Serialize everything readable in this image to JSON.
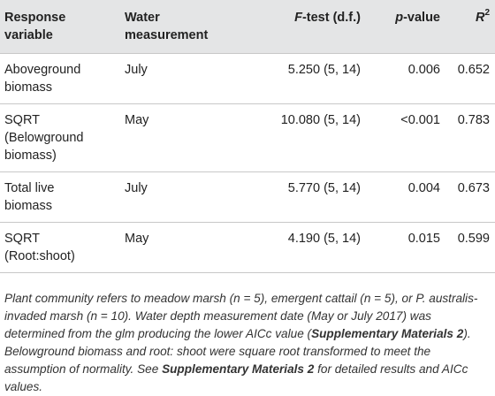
{
  "table": {
    "headers": {
      "response_line1": "Response",
      "response_line2": "variable",
      "water_line1": "Water",
      "water_line2": "measurement",
      "ftest_f": "F",
      "ftest_rest": "-test (d.f.)",
      "pvalue_p": "p",
      "pvalue_rest": "-value",
      "r2_base": "R",
      "r2_sup": "2"
    },
    "rows": [
      {
        "lines": [
          "Aboveground",
          "biomass"
        ],
        "water": "July",
        "ftest": "5.250 (5, 14)",
        "p": "0.006",
        "r2": "0.652"
      },
      {
        "lines": [
          "SQRT",
          "(Belowground",
          "biomass)"
        ],
        "water": "May",
        "ftest": "10.080 (5, 14)",
        "p": "<0.001",
        "r2": "0.783"
      },
      {
        "lines": [
          "Total live",
          "biomass"
        ],
        "water": "July",
        "ftest": "5.770 (5, 14)",
        "p": "0.004",
        "r2": "0.673"
      },
      {
        "lines": [
          "SQRT",
          "(Root:shoot)"
        ],
        "water": "May",
        "ftest": "4.190 (5, 14)",
        "p": "0.015",
        "r2": "0.599"
      }
    ]
  },
  "footnote": {
    "part1": "Plant community refers to meadow marsh (n = 5), emergent cattail (n = 5), or P. australis-invaded marsh (n = 10). Water depth measurement date (May or July 2017) was determined from the glm producing the lower AICc value (",
    "bold1": "Supplementary Materials 2",
    "part2": "). Belowground biomass and root: shoot were square root transformed to meet the assumption of normality. See ",
    "bold2": "Supplementary Materials 2",
    "part3": " for detailed results and AICc values."
  }
}
